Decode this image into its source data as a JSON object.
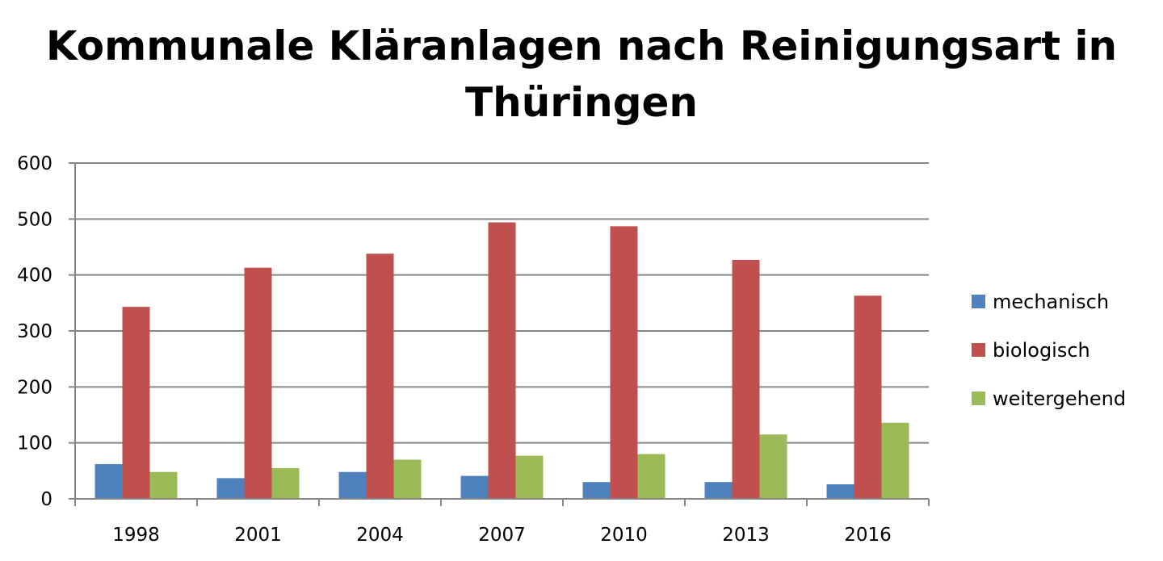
{
  "chart_data": {
    "type": "bar",
    "title_line1": "Kommunale Kläranlagen nach Reinigungsart in",
    "title_line2": "Thüringen",
    "xlabel": "",
    "ylabel": "",
    "categories": [
      "1998",
      "2001",
      "2004",
      "2007",
      "2010",
      "2013",
      "2016"
    ],
    "ylim": [
      0,
      600
    ],
    "yticks": [
      0,
      100,
      200,
      300,
      400,
      500,
      600
    ],
    "grid": true,
    "legend_position": "right",
    "series": [
      {
        "name": "mechanisch",
        "color": "#4f81bd",
        "values": [
          62,
          37,
          48,
          41,
          30,
          30,
          26
        ]
      },
      {
        "name": "biologisch",
        "color": "#c0504d",
        "values": [
          343,
          413,
          438,
          494,
          487,
          427,
          363
        ]
      },
      {
        "name": "weitergehend",
        "color": "#9bbb59",
        "values": [
          48,
          55,
          70,
          77,
          80,
          115,
          136
        ]
      }
    ]
  }
}
